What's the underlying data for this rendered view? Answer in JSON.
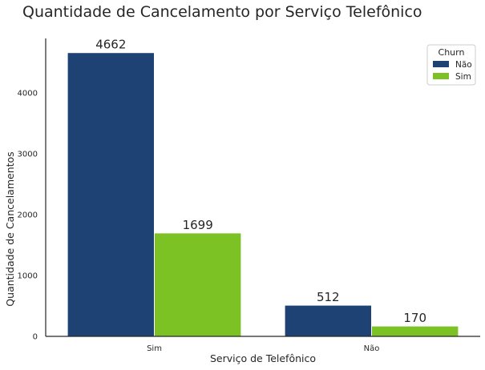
{
  "chart_data": {
    "type": "bar",
    "title": "Quantidade de Cancelamento por Serviço Telefônico",
    "xlabel": "Serviço de Telefônico",
    "ylabel": "Quantidade de Cancelamentos",
    "categories": [
      "Sim",
      "Não"
    ],
    "series": [
      {
        "name": "Não",
        "values": [
          4662,
          512
        ],
        "color": "#1f4275"
      },
      {
        "name": "Sim",
        "values": [
          1699,
          170
        ],
        "color": "#7cc224"
      }
    ],
    "data_labels": [
      "4662",
      "512",
      "1699",
      "170"
    ],
    "ylim": [
      0,
      4895
    ],
    "yticks": [
      0,
      1000,
      2000,
      3000,
      4000
    ],
    "legend": {
      "title": "Churn",
      "placement": "top-right"
    },
    "grid": false
  }
}
